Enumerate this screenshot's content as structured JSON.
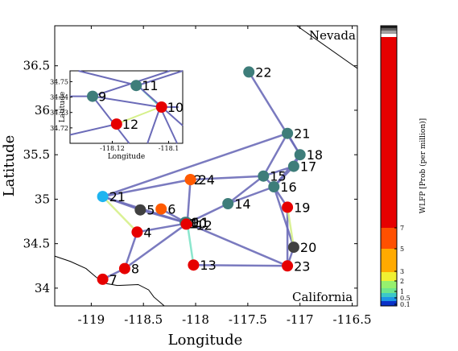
{
  "chart_data": {
    "type": "scatter",
    "xlabel": "Longitude",
    "ylabel": "Latitude",
    "xlim": [
      -119.35,
      -116.45
    ],
    "ylim": [
      33.8,
      36.95
    ],
    "xticks": [
      -119,
      -118.5,
      -118,
      -117.5,
      -117,
      -116.5
    ],
    "xtick_labels": [
      "-119",
      "-118.5",
      "-118",
      "-117.5",
      "-117",
      "-116.5"
    ],
    "yticks": [
      34,
      34.5,
      35,
      35.5,
      36,
      36.5
    ],
    "ytick_labels": [
      "34",
      "34.5",
      "35",
      "35.5",
      "36",
      "36.5"
    ],
    "region_labels": [
      "Nevada",
      "California"
    ],
    "nodes": [
      {
        "id": "1",
        "lon": -118.09,
        "lat": 34.73,
        "color": "#e60000"
      },
      {
        "id": "2",
        "lon": -118.05,
        "lat": 35.22,
        "color": "#ff5a00"
      },
      {
        "id": "4",
        "lon": -118.56,
        "lat": 34.63,
        "color": "#e60000"
      },
      {
        "id": "5",
        "lon": -118.53,
        "lat": 34.88,
        "color": "#404040"
      },
      {
        "id": "6",
        "lon": -118.33,
        "lat": 34.89,
        "color": "#ff5a00"
      },
      {
        "id": "7",
        "lon": -118.89,
        "lat": 34.1,
        "color": "#e60000"
      },
      {
        "id": "8",
        "lon": -118.68,
        "lat": 34.22,
        "color": "#e60000"
      },
      {
        "id": "9",
        "lon": -118.1,
        "lat": 34.74,
        "color": "#3e7d7a"
      },
      {
        "id": "10",
        "lon": -118.08,
        "lat": 34.73,
        "color": "#e60000"
      },
      {
        "id": "11",
        "lon": -118.09,
        "lat": 34.74,
        "color": "#3e7d7a"
      },
      {
        "id": "12",
        "lon": -118.09,
        "lat": 34.72,
        "color": "#e60000"
      },
      {
        "id": "13",
        "lon": -118.02,
        "lat": 34.26,
        "color": "#e60000"
      },
      {
        "id": "14",
        "lon": -117.69,
        "lat": 34.95,
        "color": "#3e7d7a"
      },
      {
        "id": "15",
        "lon": -117.35,
        "lat": 35.26,
        "color": "#3e7d7a"
      },
      {
        "id": "16",
        "lon": -117.25,
        "lat": 35.14,
        "color": "#3e7d7a"
      },
      {
        "id": "17",
        "lon": -117.06,
        "lat": 35.37,
        "color": "#3e7d7a"
      },
      {
        "id": "18",
        "lon": -117.0,
        "lat": 35.5,
        "color": "#3e7d7a"
      },
      {
        "id": "19",
        "lon": -117.12,
        "lat": 34.91,
        "color": "#e60000"
      },
      {
        "id": "20",
        "lon": -117.06,
        "lat": 34.46,
        "color": "#404040"
      },
      {
        "id": "21",
        "lon": -118.89,
        "lat": 35.03,
        "color": "#1eb4f0"
      },
      {
        "id": "21",
        "lon": -117.12,
        "lat": 35.74,
        "color": "#3e7d7a"
      },
      {
        "id": "22",
        "lon": -117.49,
        "lat": 36.43,
        "color": "#3e7d7a"
      },
      {
        "id": "23",
        "lon": -117.12,
        "lat": 34.25,
        "color": "#e60000"
      },
      {
        "id": "24",
        "lon": -118.05,
        "lat": 35.22,
        "color": "#ff5a00"
      }
    ],
    "edges": [
      [
        "22",
        "21",
        0
      ],
      [
        "22",
        "18",
        0
      ],
      [
        "21",
        "15",
        0
      ],
      [
        "21",
        "18",
        0
      ],
      [
        "18",
        "17",
        0
      ],
      [
        "18",
        "16",
        0
      ],
      [
        "17",
        "15",
        0
      ],
      [
        "17",
        "16",
        0
      ],
      [
        "15",
        "16",
        0
      ],
      [
        "15",
        "24",
        0
      ],
      [
        "15",
        "14",
        0
      ],
      [
        "16",
        "19",
        0
      ],
      [
        "16",
        "14",
        0
      ],
      [
        "14",
        "10",
        0
      ],
      [
        "24",
        "10",
        0
      ],
      [
        "24",
        "21",
        0
      ],
      [
        "21",
        "10",
        0
      ],
      [
        "21",
        "5",
        0
      ],
      [
        "5",
        "10",
        0
      ],
      [
        "6",
        "10",
        0
      ],
      [
        "4",
        "10",
        0
      ],
      [
        "10",
        "8",
        0
      ],
      [
        "10",
        "23",
        0
      ],
      [
        "13",
        "23",
        0
      ],
      [
        "20",
        "23",
        0
      ],
      [
        "20",
        "16",
        0
      ],
      [
        "19",
        "23",
        0
      ],
      [
        "7",
        "8",
        0
      ],
      [
        "4",
        "8",
        0
      ],
      [
        "21",
        "4",
        2
      ],
      [
        "10",
        "13",
        1
      ],
      [
        "19",
        "20",
        2
      ]
    ],
    "colorbar": {
      "label": "WLFP [Prob (per million)]",
      "ticks": [
        "0.1",
        "0.5",
        "1",
        "2",
        "3",
        "5",
        "7"
      ]
    },
    "inset": {
      "xlabel": "Longitude",
      "ylabel": "Latitude",
      "xlim": [
        -118.135,
        -118.095
      ],
      "ylim": [
        34.71,
        34.757
      ],
      "xtick_labels": [
        "-118.12",
        "-118.1"
      ],
      "ytick_labels": [
        "34.72",
        "34.73",
        "34.74",
        "34.75"
      ],
      "nodes": [
        {
          "id": "9",
          "lon": -118.127,
          "lat": 34.7405,
          "color": "#3e7d7a"
        },
        {
          "id": "11",
          "lon": -118.1115,
          "lat": 34.7475,
          "color": "#3e7d7a"
        },
        {
          "id": "10",
          "lon": -118.1025,
          "lat": 34.7335,
          "color": "#e60000"
        },
        {
          "id": "12",
          "lon": -118.1185,
          "lat": 34.7225,
          "color": "#e60000"
        }
      ]
    }
  }
}
